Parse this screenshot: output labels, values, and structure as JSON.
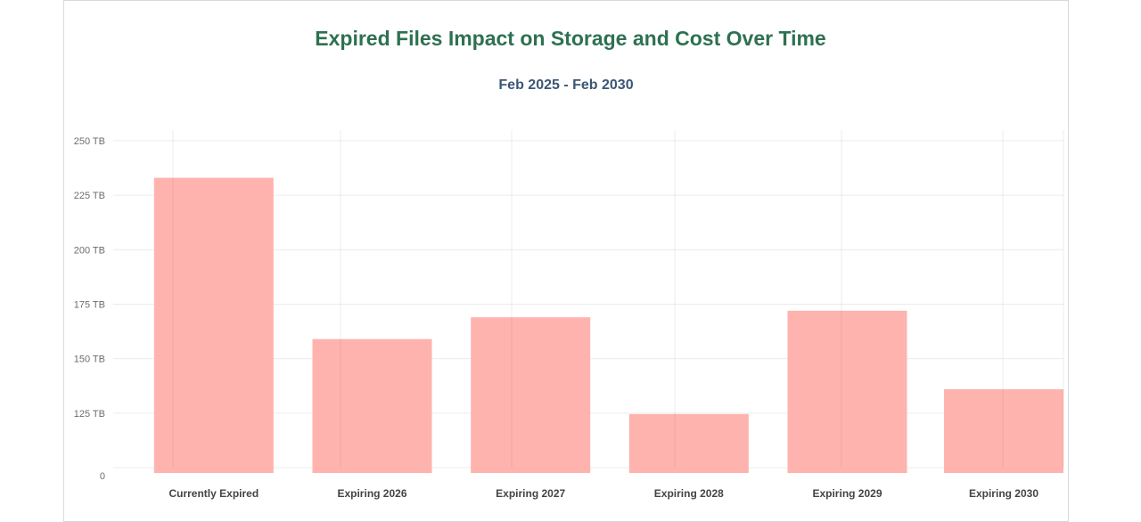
{
  "chart_data": {
    "type": "bar",
    "title": "Expired Files Impact on Storage and Cost Over Time",
    "subtitle": "Feb 2025 - Feb 2030",
    "categories": [
      "Currently Expired",
      "Expiring 2026",
      "Expiring 2027",
      "Expiring 2028",
      "Expiring 2029",
      "Expiring 2030"
    ],
    "values": [
      233,
      159,
      169,
      123,
      172,
      136
    ],
    "unit": "TB",
    "y_ticks": [
      {
        "label": "0",
        "value": 0
      },
      {
        "label": "125 TB",
        "value": 125
      },
      {
        "label": "150 TB",
        "value": 150
      },
      {
        "label": "175 TB",
        "value": 175
      },
      {
        "label": "200 TB",
        "value": 200
      },
      {
        "label": "225 TB",
        "value": 225
      },
      {
        "label": "250 TB",
        "value": 250
      }
    ],
    "grid": true,
    "bar_color": "#ffb3ae"
  }
}
